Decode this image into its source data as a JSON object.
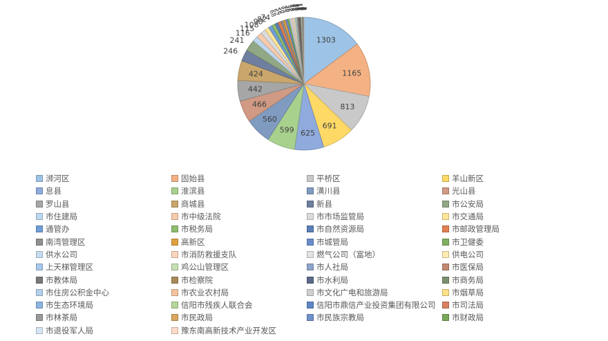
{
  "chart_data": {
    "type": "pie",
    "title": "",
    "legend_position": "bottom",
    "slices": [
      {
        "label": "浉河区",
        "value": 1303,
        "color": "#9dc3e6"
      },
      {
        "label": "固始县",
        "value": 1165,
        "color": "#f4b183"
      },
      {
        "label": "平桥区",
        "value": 813,
        "color": "#c9c9c9"
      },
      {
        "label": "羊山新区",
        "value": 691,
        "color": "#ffd966"
      },
      {
        "label": "息县",
        "value": 625,
        "color": "#8faadc"
      },
      {
        "label": "淮滨县",
        "value": 599,
        "color": "#a9d18e"
      },
      {
        "label": "潢川县",
        "value": 560,
        "color": "#7f9bc0"
      },
      {
        "label": "光山县",
        "value": 466,
        "color": "#d09a84"
      },
      {
        "label": "罗山县",
        "value": 442,
        "color": "#a6a6a6"
      },
      {
        "label": "商城县",
        "value": 424,
        "color": "#c9a66b"
      },
      {
        "label": "新县",
        "value": 246,
        "color": "#6f7f9f"
      },
      {
        "label": "市公安局",
        "value": 241,
        "color": "#92a783"
      },
      {
        "label": "市住建局",
        "value": 116,
        "color": "#bdd7ee"
      },
      {
        "label": "市中级法院",
        "value": 115,
        "color": "#f8cbad"
      },
      {
        "label": "市市场监管局",
        "value": 108,
        "color": "#dbdbdb"
      },
      {
        "label": "市交通局",
        "value": 90,
        "color": "#ffe699"
      },
      {
        "label": "通管办",
        "value": 82,
        "color": "#6f9fd8"
      },
      {
        "label": "市税务局",
        "value": 74,
        "color": "#8fbc6f"
      },
      {
        "label": "市自然资源局",
        "value": 68,
        "color": "#5b7fb8"
      },
      {
        "label": "市邮政管理局",
        "value": 62,
        "color": "#e08050"
      },
      {
        "label": "南湾管理区",
        "value": 56,
        "color": "#909090"
      },
      {
        "label": "高新区",
        "value": 50,
        "color": "#e0a040"
      },
      {
        "label": "市城管局",
        "value": 45,
        "color": "#6a8ccc"
      },
      {
        "label": "市卫健委",
        "value": 40,
        "color": "#80b060"
      },
      {
        "label": "供水公司",
        "value": 36,
        "color": "#c5dcf0"
      },
      {
        "label": "市消防救援支队",
        "value": 32,
        "color": "#fbd5bd"
      },
      {
        "label": "燃气公司（富地）",
        "value": 28,
        "color": "#e3e3e3"
      },
      {
        "label": "供电公司",
        "value": 25,
        "color": "#ffeab0"
      },
      {
        "label": "上天梯管理区",
        "value": 22,
        "color": "#a8c8ec"
      },
      {
        "label": "鸡公山管理区",
        "value": 20,
        "color": "#c6e0b4"
      },
      {
        "label": "市人社局",
        "value": 18,
        "color": "#8ea4c8"
      },
      {
        "label": "市医保局",
        "value": 16,
        "color": "#c08870"
      },
      {
        "label": "市教体局",
        "value": 14,
        "color": "#7a7a7a"
      },
      {
        "label": "市检察院",
        "value": 12,
        "color": "#a88a5a"
      },
      {
        "label": "市水利局",
        "value": 11,
        "color": "#5a6a8a"
      },
      {
        "label": "市商务局",
        "value": 10,
        "color": "#7a9070"
      },
      {
        "label": "市住房公积金中心",
        "value": 9,
        "color": "#b4cfe9"
      },
      {
        "label": "市农业农村局",
        "value": 8,
        "color": "#f5c3a0"
      },
      {
        "label": "市文化广电和旅游局",
        "value": 7,
        "color": "#d0d0d0"
      },
      {
        "label": "市烟草局",
        "value": 6,
        "color": "#fde08a"
      },
      {
        "label": "市生态环境局",
        "value": 6,
        "color": "#8bb4e0"
      },
      {
        "label": "信阳市残疾人联合会",
        "value": 5,
        "color": "#b5d89a"
      },
      {
        "label": "信阳市鼎信产业投资集团有限公司",
        "value": 5,
        "color": "#5f86c4"
      },
      {
        "label": "市司法局",
        "value": 4,
        "color": "#d88060"
      },
      {
        "label": "市林茶局",
        "value": 4,
        "color": "#9a9a9a"
      },
      {
        "label": "市民政局",
        "value": 3,
        "color": "#d8a860"
      },
      {
        "label": "市民族宗教局",
        "value": 3,
        "color": "#7090c8"
      },
      {
        "label": "市财政局",
        "value": 2,
        "color": "#78a858"
      },
      {
        "label": "市退役军人局",
        "value": 2,
        "color": "#d6e6f5"
      },
      {
        "label": "豫东南高新技术产业开发区",
        "value": 2,
        "color": "#fcdcc8"
      }
    ]
  }
}
